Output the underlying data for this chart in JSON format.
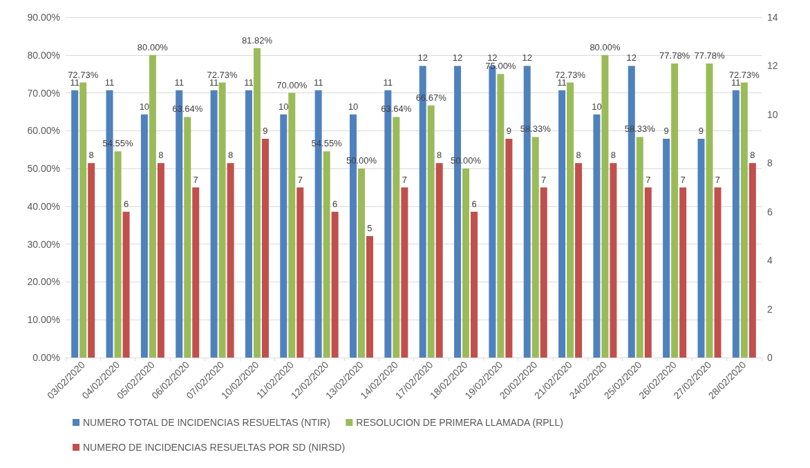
{
  "chart_data": {
    "type": "bar",
    "categories": [
      "03/02/2020",
      "04/02/2020",
      "05/02/2020",
      "06/02/2020",
      "07/02/2020",
      "10/02/2020",
      "11/02/2020",
      "12/02/2020",
      "13/02/2020",
      "14/02/2020",
      "17/02/2020",
      "18/02/2020",
      "19/02/2020",
      "20/02/2020",
      "21/02/2020",
      "24/02/2020",
      "25/02/2020",
      "26/02/2020",
      "27/02/2020",
      "28/02/2020"
    ],
    "series": [
      {
        "name": "NUMERO TOTAL DE INCIDENCIAS RESUELTAS (NTIR)",
        "color": "#4f81bd",
        "axis": "y2",
        "values": [
          11,
          11,
          10,
          11,
          11,
          11,
          10,
          11,
          10,
          11,
          12,
          12,
          12,
          12,
          11,
          10,
          12,
          9,
          9,
          11
        ],
        "value_labels": [
          "11",
          "11",
          "10",
          "11",
          "11",
          "11",
          "10",
          "11",
          "10",
          "11",
          "12",
          "12",
          "12",
          "12",
          "11",
          "10",
          "12",
          "9",
          "9",
          "11"
        ]
      },
      {
        "name": "RESOLUCION DE PRIMERA LLAMADA (RPLL)",
        "color": "#9bbb59",
        "values": [
          72.73,
          54.55,
          80.0,
          63.64,
          72.73,
          81.82,
          70.0,
          54.55,
          50.0,
          63.64,
          66.67,
          50.0,
          75.0,
          58.33,
          72.73,
          80.0,
          58.33,
          77.78,
          77.78,
          72.73
        ],
        "value_labels": [
          "72.73%",
          "54.55%",
          "80.00%",
          "63.64%",
          "72.73%",
          "81.82%",
          "70.00%",
          "54.55%",
          "50.00%",
          "63.64%",
          "66.67%",
          "50.00%",
          "75.00%",
          "58.33%",
          "72.73%",
          "80.00%",
          "58.33%",
          "77.78%",
          "77.78%",
          "72.73%"
        ]
      },
      {
        "name": "NUMERO DE INCIDENCIAS RESUELTAS POR SD (NIRSD)",
        "color": "#c0504d",
        "axis": "y2",
        "values": [
          8,
          6,
          8,
          7,
          8,
          9,
          7,
          6,
          5,
          7,
          8,
          6,
          9,
          7,
          8,
          8,
          7,
          7,
          7,
          8
        ],
        "value_labels": [
          "8",
          "6",
          "8",
          "7",
          "8",
          "9",
          "7",
          "6",
          "5",
          "7",
          "8",
          "6",
          "9",
          "7",
          "8",
          "8",
          "7",
          "7",
          "7",
          "8"
        ]
      }
    ],
    "ylim": [
      0,
      90
    ],
    "yticks": [
      {
        "value": 0,
        "label": "0.00%"
      },
      {
        "value": 10,
        "label": "10.00%"
      },
      {
        "value": 20,
        "label": "20.00%"
      },
      {
        "value": 30,
        "label": "30.00%"
      },
      {
        "value": 40,
        "label": "40.00%"
      },
      {
        "value": 50,
        "label": "50.00%"
      },
      {
        "value": 60,
        "label": "60.00%"
      },
      {
        "value": 70,
        "label": "70.00%"
      },
      {
        "value": 80,
        "label": "80.00%"
      },
      {
        "value": 90,
        "label": "90.00%"
      }
    ],
    "y2lim": [
      0,
      14
    ],
    "y2ticks": [
      0,
      2,
      4,
      6,
      8,
      10,
      12,
      14
    ],
    "grid": "y",
    "legend": "bottom"
  }
}
